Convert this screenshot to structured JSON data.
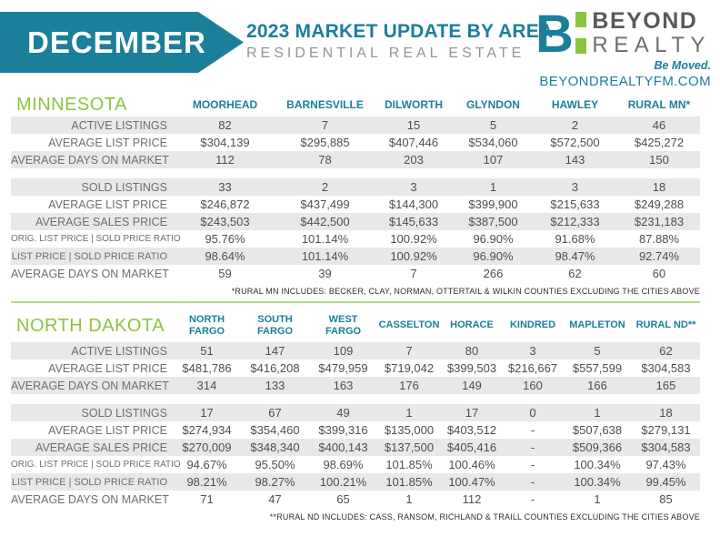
{
  "header": {
    "month": "DECEMBER",
    "title": "2023 MARKET UPDATE BY AREA",
    "subtitle": "RESIDENTIAL REAL ESTATE",
    "logo": {
      "icon": "beyond-realty-b-icon",
      "brand_top": "BEYOND",
      "brand_bottom": "REALTY",
      "tagline": "Be Moved.",
      "website": "BEYONDREALTYFM.COM"
    }
  },
  "colors": {
    "teal": "#1b7f9a",
    "green": "#8bc53f",
    "light_green": "#b2d98b",
    "row_shade": "#e8e8e9",
    "label_gray": "#6d6e71",
    "value_gray": "#4d4e50",
    "subtitle_gray": "#939598",
    "brand_gray": "#58595b"
  },
  "minnesota": {
    "title": "MINNESOTA",
    "columns": [
      "MOORHEAD",
      "BARNESVILLE",
      "DILWORTH",
      "GLYNDON",
      "HAWLEY",
      "RURAL MN*"
    ],
    "active_rows": [
      {
        "label": "ACTIVE LISTINGS",
        "values": [
          "82",
          "7",
          "15",
          "5",
          "2",
          "46"
        ]
      },
      {
        "label": "AVERAGE LIST PRICE",
        "values": [
          "$304,139",
          "$295,885",
          "$407,446",
          "$534,060",
          "$572,500",
          "$425,272"
        ]
      },
      {
        "label": "AVERAGE DAYS ON MARKET",
        "values": [
          "112",
          "78",
          "203",
          "107",
          "143",
          "150"
        ]
      }
    ],
    "sold_rows": [
      {
        "label": "SOLD LISTINGS",
        "values": [
          "33",
          "2",
          "3",
          "1",
          "3",
          "18"
        ]
      },
      {
        "label": "AVERAGE LIST PRICE",
        "values": [
          "$246,872",
          "$437,499",
          "$144,300",
          "$399,900",
          "$215,633",
          "$249,288"
        ]
      },
      {
        "label": "AVERAGE SALES PRICE",
        "values": [
          "$243,503",
          "$442,500",
          "$145,633",
          "$387,500",
          "$212,333",
          "$231,183"
        ]
      },
      {
        "label": "ORIG. LIST PRICE | SOLD PRICE RATIO",
        "values": [
          "95.76%",
          "101.14%",
          "100.92%",
          "96.90%",
          "91.68%",
          "87.88%"
        ]
      },
      {
        "label": "LIST PRICE | SOLD PRICE RATIO",
        "values": [
          "98.64%",
          "101.14%",
          "100.92%",
          "96.90%",
          "98.47%",
          "92.74%"
        ]
      },
      {
        "label": "AVERAGE DAYS ON MARKET",
        "values": [
          "59",
          "39",
          "7",
          "266",
          "62",
          "60"
        ]
      }
    ],
    "footnote": "*RURAL MN INCLUDES: BECKER, CLAY, NORMAN, OTTERTAIL & WILKIN COUNTIES EXCLUDING THE CITIES ABOVE"
  },
  "north_dakota": {
    "title": "NORTH DAKOTA",
    "columns": [
      "NORTH FARGO",
      "SOUTH FARGO",
      "WEST FARGO",
      "CASSELTON",
      "HORACE",
      "KINDRED",
      "MAPLETON",
      "RURAL ND**"
    ],
    "active_rows": [
      {
        "label": "ACTIVE LISTINGS",
        "values": [
          "51",
          "147",
          "109",
          "7",
          "80",
          "3",
          "5",
          "62"
        ]
      },
      {
        "label": "AVERAGE LIST PRICE",
        "values": [
          "$481,786",
          "$416,208",
          "$479,959",
          "$719,042",
          "$399,503",
          "$216,667",
          "$557,599",
          "$304,583"
        ]
      },
      {
        "label": "AVERAGE DAYS ON MARKET",
        "values": [
          "314",
          "133",
          "163",
          "176",
          "149",
          "160",
          "166",
          "165"
        ]
      }
    ],
    "sold_rows": [
      {
        "label": "SOLD LISTINGS",
        "values": [
          "17",
          "67",
          "49",
          "1",
          "17",
          "0",
          "1",
          "18"
        ]
      },
      {
        "label": "AVERAGE LIST PRICE",
        "values": [
          "$274,934",
          "$354,460",
          "$399,316",
          "$135,000",
          "$403,512",
          "-",
          "$507,638",
          "$279,131"
        ]
      },
      {
        "label": "AVERAGE SALES PRICE",
        "values": [
          "$270,009",
          "$348,340",
          "$400,143",
          "$137,500",
          "$405,416",
          "-",
          "$509,366",
          "$304,583"
        ]
      },
      {
        "label": "ORIG. LIST PRICE | SOLD PRICE RATIO",
        "values": [
          "94.67%",
          "95.50%",
          "98.69%",
          "101.85%",
          "100.46%",
          "-",
          "100.34%",
          "97.43%"
        ]
      },
      {
        "label": "LIST PRICE | SOLD PRICE RATIO",
        "values": [
          "98.21%",
          "98.27%",
          "100.21%",
          "101.85%",
          "100.47%",
          "-",
          "100.34%",
          "99.45%"
        ]
      },
      {
        "label": "AVERAGE DAYS ON MARKET",
        "values": [
          "71",
          "47",
          "65",
          "1",
          "112",
          "-",
          "1",
          "85"
        ]
      }
    ],
    "footnote": "**RURAL ND INCLUDES: CASS, RANSOM, RICHLAND & TRAILL COUNTIES EXCLUDING THE CITIES ABOVE"
  }
}
